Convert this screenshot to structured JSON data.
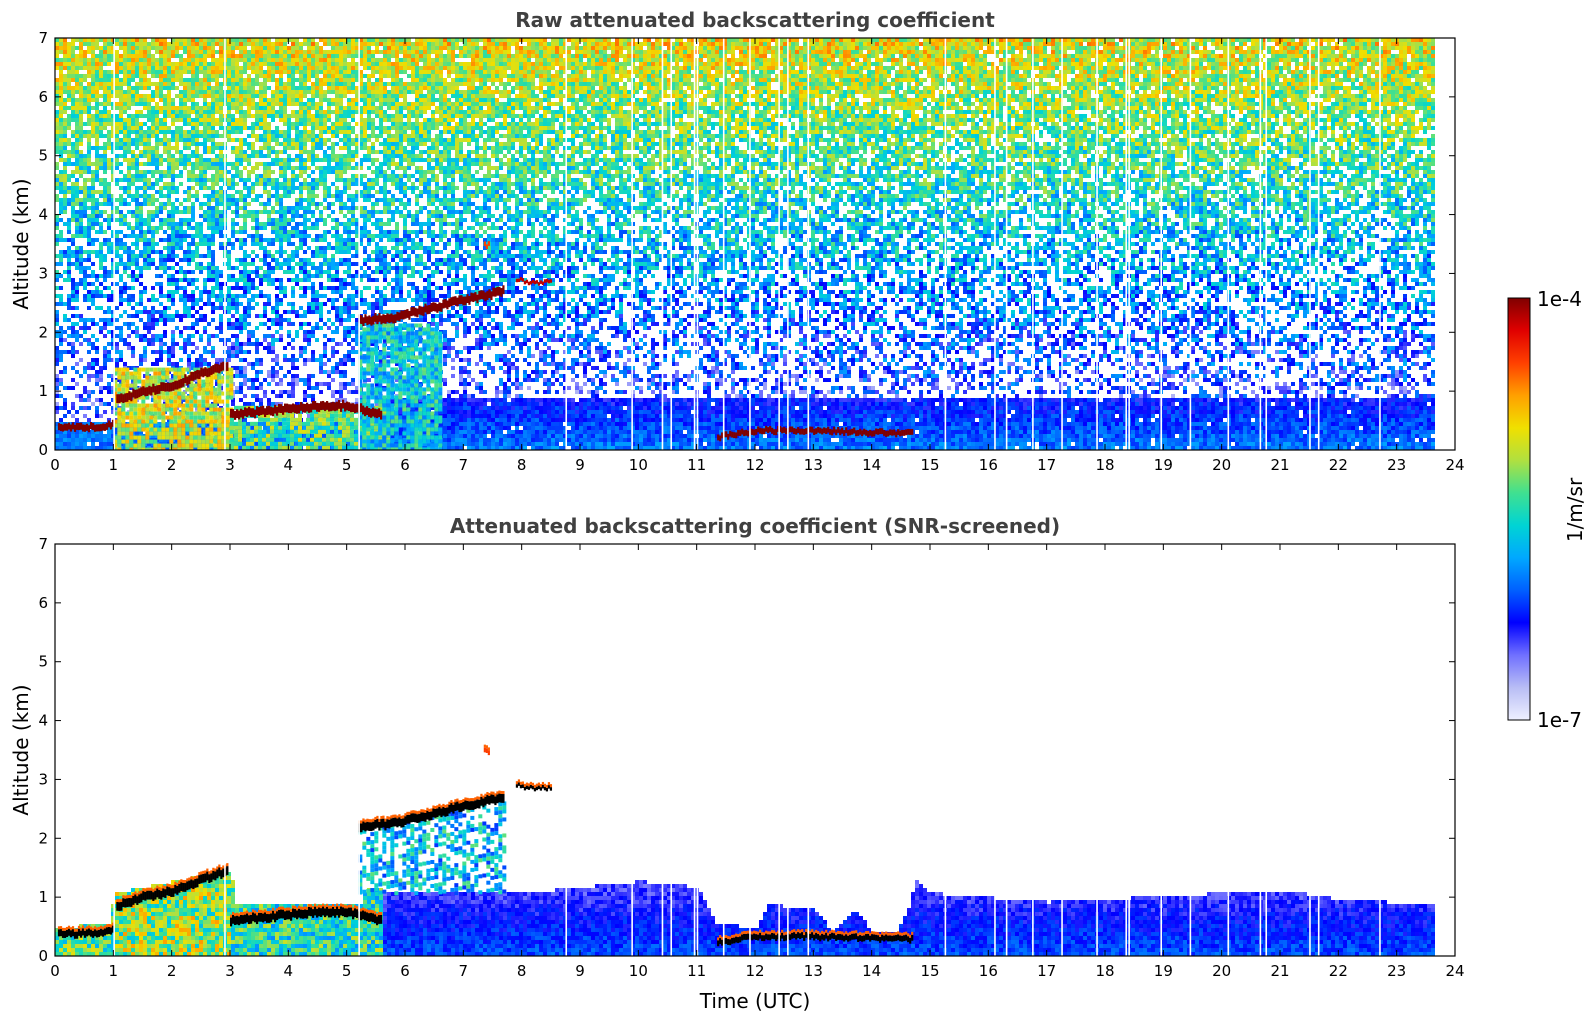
{
  "chart_data": [
    {
      "type": "heatmap",
      "title": "Raw attenuated backscattering coefficient",
      "xlabel": "",
      "ylabel": "Altitude (km)",
      "xlim": [
        0,
        24
      ],
      "ylim": [
        0,
        7
      ],
      "x_ticks": [
        0,
        1,
        2,
        3,
        4,
        5,
        6,
        7,
        8,
        9,
        10,
        11,
        12,
        13,
        14,
        15,
        16,
        17,
        18,
        19,
        20,
        21,
        22,
        23,
        24
      ],
      "y_ticks": [
        0,
        1,
        2,
        3,
        4,
        5,
        6,
        7
      ],
      "data_end_time": 23.65,
      "color_scale": "log",
      "layers": [
        {
          "x": [
            0.05,
            0.5,
            0.9,
            1.0
          ],
          "y": [
            0.38,
            0.38,
            0.42,
            0.45
          ],
          "thickness": 0.12,
          "level": 1.0
        },
        {
          "x": [
            1.05,
            1.5,
            2.0,
            2.5,
            2.95
          ],
          "y": [
            0.85,
            1.0,
            1.1,
            1.3,
            1.45
          ],
          "thickness": 0.15,
          "level": 1.0
        },
        {
          "x": [
            3.0,
            3.5,
            4.0,
            4.5,
            5.0,
            5.6
          ],
          "y": [
            0.6,
            0.65,
            0.7,
            0.75,
            0.75,
            0.6
          ],
          "thickness": 0.15,
          "level": 1.0
        },
        {
          "x": [
            5.2,
            5.8,
            6.4,
            7.0,
            7.7
          ],
          "y": [
            2.2,
            2.25,
            2.4,
            2.55,
            2.7
          ],
          "thickness": 0.15,
          "level": 1.0
        },
        {
          "x": [
            7.9,
            8.1,
            8.3,
            8.5
          ],
          "y": [
            2.9,
            2.85,
            2.85,
            2.85
          ],
          "thickness": 0.06,
          "level": 0.95
        },
        {
          "x": [
            7.35,
            7.45
          ],
          "y": [
            3.48,
            3.48
          ],
          "thickness": 0.08,
          "level": 0.85
        },
        {
          "x": [
            11.35,
            12.0,
            13.0,
            14.0,
            14.7
          ],
          "y": [
            0.22,
            0.33,
            0.33,
            0.3,
            0.28
          ],
          "thickness": 0.1,
          "level": 1.0
        }
      ],
      "low_cloud_regions": [
        {
          "x": [
            1.0,
            3.0
          ],
          "y_top": 1.4,
          "level": 0.65
        },
        {
          "x": [
            3.0,
            5.7
          ],
          "y_top": 0.75,
          "level": 0.55
        },
        {
          "x": [
            5.2,
            6.6
          ],
          "y_top": 2.15,
          "level": 0.45
        }
      ],
      "boundary_layer_top_km": 0.9,
      "data_gaps_hours": [
        1.0,
        2.9,
        5.2,
        8.75,
        9.88,
        10.4,
        10.55,
        10.95,
        11.0,
        11.45,
        11.9,
        12.4,
        12.55,
        12.9,
        15.25,
        16.1,
        16.3,
        16.75,
        17.25,
        17.85,
        18.35,
        18.4,
        18.95,
        19.45,
        20.1,
        20.65,
        20.75,
        21.5,
        21.65,
        22.7
      ]
    },
    {
      "type": "heatmap",
      "title": "Attenuated backscattering coefficient (SNR-screened)",
      "xlabel": "Time (UTC)",
      "ylabel": "Altitude (km)",
      "xlim": [
        0,
        24
      ],
      "ylim": [
        0,
        7
      ],
      "x_ticks": [
        0,
        1,
        2,
        3,
        4,
        5,
        6,
        7,
        8,
        9,
        10,
        11,
        12,
        13,
        14,
        15,
        16,
        17,
        18,
        19,
        20,
        21,
        22,
        23,
        24
      ],
      "y_ticks": [
        0,
        1,
        2,
        3,
        4,
        5,
        6,
        7
      ],
      "data_end_time": 23.65,
      "color_scale": "log",
      "saturation_color": "#000000",
      "boundary_layer_top_km": [
        [
          0.0,
          0.5
        ],
        [
          0.9,
          0.6
        ],
        [
          1.0,
          1.1
        ],
        [
          3.0,
          1.5
        ],
        [
          3.05,
          0.9
        ],
        [
          5.2,
          0.9
        ],
        [
          5.3,
          1.2
        ],
        [
          6.0,
          1.1
        ],
        [
          8.0,
          1.1
        ],
        [
          10.0,
          1.3
        ],
        [
          11.0,
          1.2
        ],
        [
          11.3,
          0.6
        ],
        [
          12.0,
          0.5
        ],
        [
          12.2,
          0.9
        ],
        [
          13.0,
          0.85
        ],
        [
          13.3,
          0.45
        ],
        [
          13.7,
          0.8
        ],
        [
          14.0,
          0.45
        ],
        [
          14.4,
          0.45
        ],
        [
          14.65,
          0.9
        ],
        [
          14.7,
          1.4
        ],
        [
          15.0,
          1.1
        ],
        [
          17.0,
          0.95
        ],
        [
          19.0,
          1.05
        ],
        [
          21.0,
          1.15
        ],
        [
          22.0,
          1.0
        ],
        [
          23.65,
          0.9
        ]
      ]
    }
  ],
  "colorbar": {
    "label": "1/m/sr",
    "min_label": "1e-7",
    "max_label": "1e-4",
    "stops": [
      "#eef0ff",
      "#b8bdf5",
      "#7070ff",
      "#0000ff",
      "#0060ff",
      "#00a8ff",
      "#00d4d4",
      "#40e090",
      "#b0e040",
      "#f0e000",
      "#ffa000",
      "#ff4000",
      "#e00000",
      "#800000"
    ]
  }
}
